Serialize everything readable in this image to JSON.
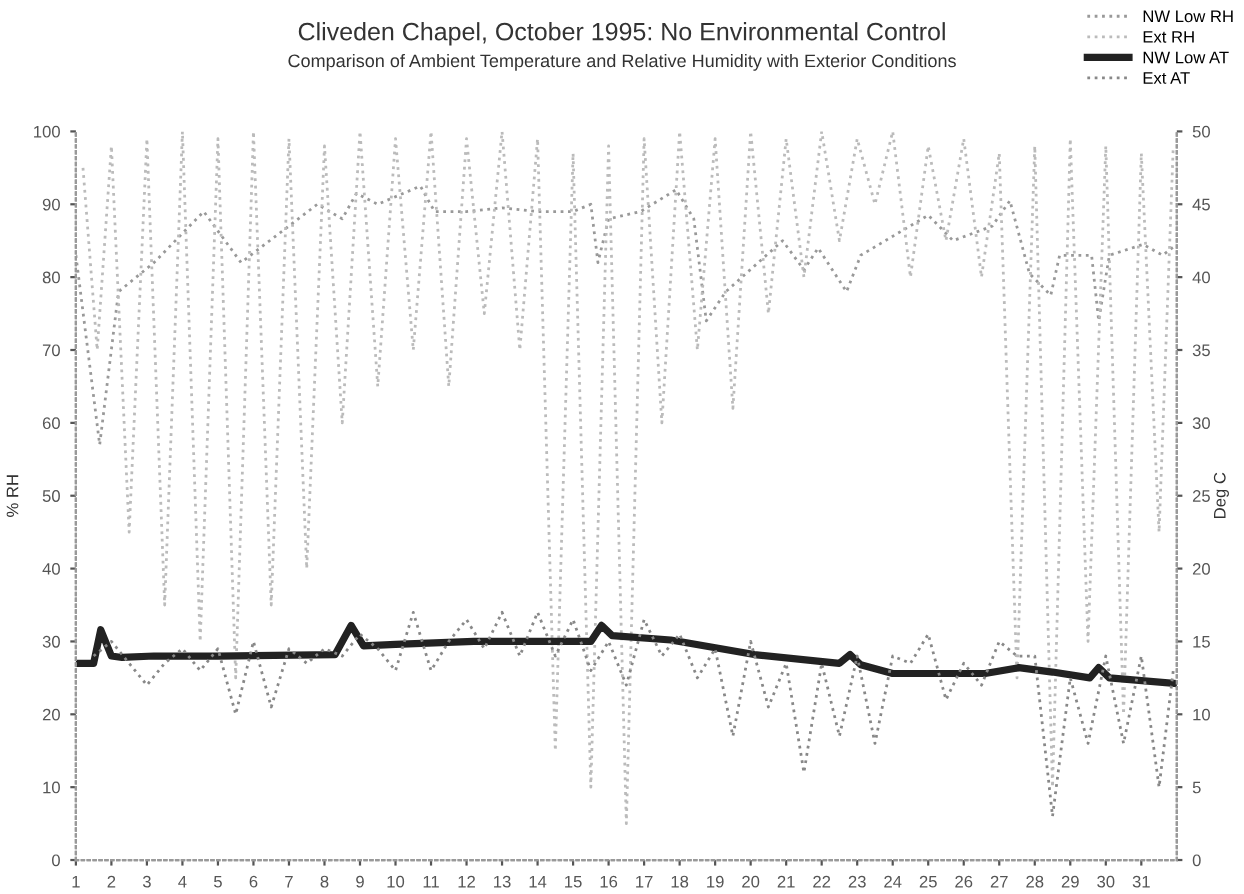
{
  "chart_data": {
    "type": "line",
    "title": "Cliveden Chapel, October 1995: No Environmental Control",
    "subtitle": "Comparison of Ambient Temperature and Relative Humidity with Exterior Conditions",
    "ylabel": "% RH",
    "y2label": "Deg C",
    "xlim": [
      1,
      32
    ],
    "xticks": [
      1,
      2,
      3,
      4,
      5,
      6,
      7,
      8,
      9,
      10,
      11,
      12,
      13,
      14,
      15,
      16,
      17,
      18,
      19,
      20,
      21,
      22,
      23,
      24,
      25,
      26,
      27,
      28,
      29,
      30,
      31
    ],
    "ylim": [
      0,
      100
    ],
    "yticks": [
      0,
      10,
      20,
      30,
      40,
      50,
      60,
      70,
      80,
      90,
      100
    ],
    "y2lim": [
      0,
      50
    ],
    "y2ticks": [
      0,
      5,
      10,
      15,
      20,
      25,
      30,
      35,
      40,
      45,
      50
    ],
    "grid": false,
    "legend": "top right",
    "series": [
      {
        "name": "NW Low RH",
        "color": "#999999",
        "line_style": "dotted",
        "x": [
          1,
          1.67,
          2.2,
          3.2,
          4.4,
          4.6,
          5.65,
          7.8,
          8.5,
          8.9,
          9.5,
          10.7,
          11.1,
          12,
          13,
          14,
          15,
          15.5,
          15.7,
          16,
          16.9,
          17.9,
          18.4,
          18.75,
          19.3,
          20.9,
          21.5,
          21.9,
          22.7,
          23.1,
          25,
          25.7,
          26.8,
          27.3,
          27.85,
          28.45,
          28.7,
          29.6,
          29.8,
          30.1,
          31.05,
          31.6,
          32
        ],
        "values": [
          83,
          57,
          78,
          82,
          88,
          89,
          82,
          90,
          88,
          91.5,
          90,
          92.5,
          89,
          89,
          89.5,
          89,
          89,
          90,
          82,
          88,
          89,
          92,
          88,
          74,
          78,
          85,
          81,
          84,
          78,
          83,
          88.5,
          85,
          87,
          90.5,
          80.5,
          77.5,
          83,
          83,
          74,
          83,
          84.5,
          83,
          84.5
        ]
      },
      {
        "name": "Ext RH",
        "color": "#bbbbbb",
        "line_style": "dotted",
        "x": [
          1.2,
          1.6,
          2,
          2.5,
          3,
          3.5,
          4,
          4.5,
          5,
          5.5,
          6,
          6.5,
          7,
          7.5,
          8,
          8.5,
          9,
          9.5,
          10,
          10.5,
          11,
          11.5,
          12,
          12.5,
          13,
          13.5,
          14,
          14.5,
          15,
          15.5,
          16,
          16.5,
          17,
          17.5,
          18,
          18.5,
          19,
          19.5,
          20,
          20.5,
          21,
          21.5,
          22,
          22.5,
          23,
          23.5,
          24,
          24.5,
          25,
          25.5,
          26,
          26.5,
          27,
          27.5,
          28,
          28.5,
          29,
          29.5,
          30,
          30.5,
          31,
          31.5,
          31.9
        ],
        "values": [
          95,
          70,
          98,
          45,
          99,
          35,
          100,
          30,
          99,
          25,
          100,
          35,
          99,
          40,
          98,
          60,
          100,
          65,
          99,
          70,
          100,
          65,
          99,
          75,
          100,
          70,
          99,
          15,
          97,
          10,
          98,
          5,
          99,
          60,
          100,
          70,
          99,
          62,
          100,
          75,
          99,
          80,
          100,
          85,
          99,
          90,
          100,
          80,
          98,
          85,
          99,
          80,
          97,
          25,
          98,
          10,
          99,
          30,
          98,
          20,
          97,
          45,
          98
        ]
      },
      {
        "name": "NW Low AT",
        "color": "#222222",
        "axis": "y2",
        "line_style": "solid",
        "x": [
          1,
          1.5,
          1.7,
          2,
          2.3,
          3.2,
          5,
          8.3,
          8.75,
          9.1,
          10,
          12.2,
          15.5,
          15.8,
          16.1,
          17.75,
          20.1,
          22.5,
          22.8,
          23.1,
          24,
          26.6,
          27.55,
          28.5,
          29.55,
          29.8,
          30.1,
          32
        ],
        "values": [
          13.5,
          13.5,
          15.8,
          14,
          13.9,
          14,
          14,
          14.1,
          16.1,
          14.7,
          14.8,
          15,
          15,
          16.1,
          15.4,
          15.1,
          14.1,
          13.5,
          14.1,
          13.4,
          12.8,
          12.8,
          13.2,
          12.9,
          12.5,
          13.2,
          12.5,
          12.1
        ]
      },
      {
        "name": "Ext AT",
        "color": "#888888",
        "axis": "y2",
        "line_style": "dotted",
        "x": [
          1.5,
          2,
          2.5,
          3,
          3.5,
          4,
          4.5,
          5,
          5.5,
          6,
          6.5,
          7,
          7.5,
          8,
          8.5,
          9,
          9.5,
          10,
          10.5,
          11,
          11.5,
          12,
          12.5,
          13,
          13.5,
          14,
          14.5,
          15,
          15.5,
          16,
          16.5,
          17,
          17.5,
          18,
          18.5,
          19,
          19.5,
          20,
          20.5,
          21,
          21.5,
          22,
          22.5,
          23,
          23.5,
          24,
          24.5,
          25,
          25.5,
          26,
          26.5,
          27,
          27.5,
          28,
          28.5,
          29,
          29.5,
          30,
          30.5,
          31,
          31.5,
          31.9
        ],
        "values": [
          14,
          15,
          13.5,
          12,
          13.5,
          14.5,
          13,
          14.5,
          10,
          15,
          10.5,
          14.5,
          13.5,
          14.5,
          14,
          15.5,
          14.5,
          13,
          17,
          13,
          15,
          16.5,
          14.5,
          17,
          14,
          17,
          14,
          16.5,
          13,
          15,
          12,
          16.5,
          14,
          15.5,
          12.5,
          14.5,
          8.5,
          15,
          10.5,
          13.5,
          6,
          13.5,
          8.5,
          14,
          8,
          14,
          13.5,
          15.5,
          11,
          13.5,
          12,
          15,
          14,
          14,
          3,
          12.5,
          8,
          14,
          8,
          14,
          5,
          13
        ]
      }
    ]
  }
}
